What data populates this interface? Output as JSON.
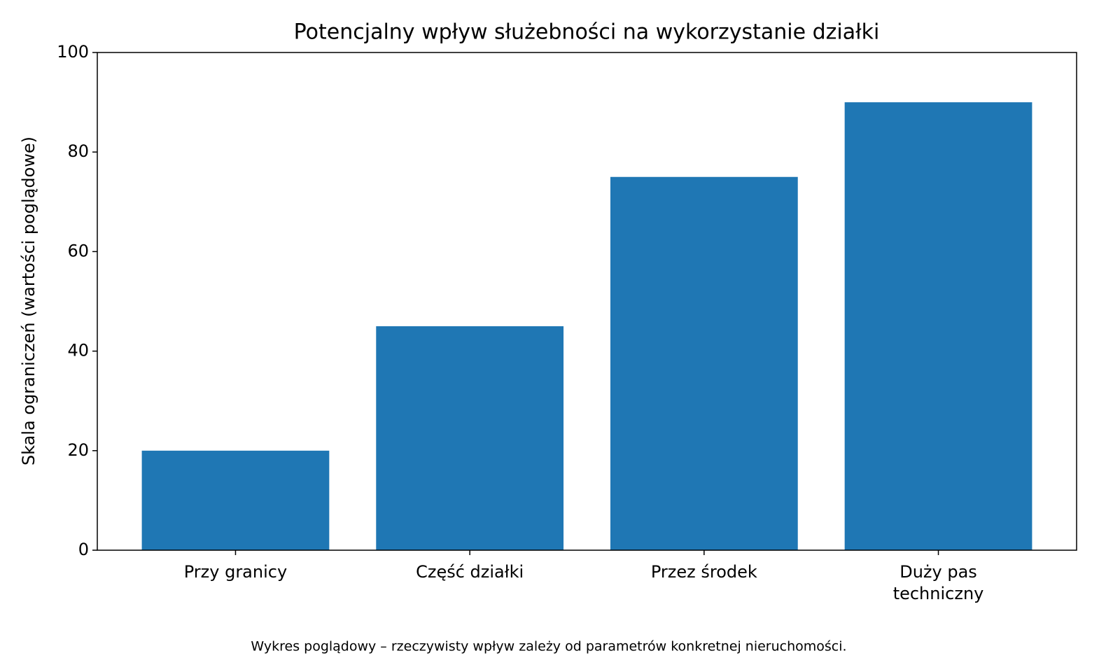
{
  "chart_data": {
    "type": "bar",
    "title": "Potencjalny wpływ służebności na wykorzystanie działki",
    "categories": [
      "Przy granicy",
      "Część działki",
      "Przez środek",
      "Duży pas\ntechniczny"
    ],
    "values": [
      20,
      45,
      75,
      90
    ],
    "color": "#1f77b4",
    "ylabel": "Skala ograniczeń (wartości poglądowe)",
    "ylim": [
      0,
      100
    ],
    "yticks": [
      0,
      20,
      40,
      60,
      80,
      100
    ],
    "grid": false,
    "footnote": "Wykres poglądowy – rzeczywisty wpływ zależy od parametrów konkretnej nieruchomości."
  }
}
